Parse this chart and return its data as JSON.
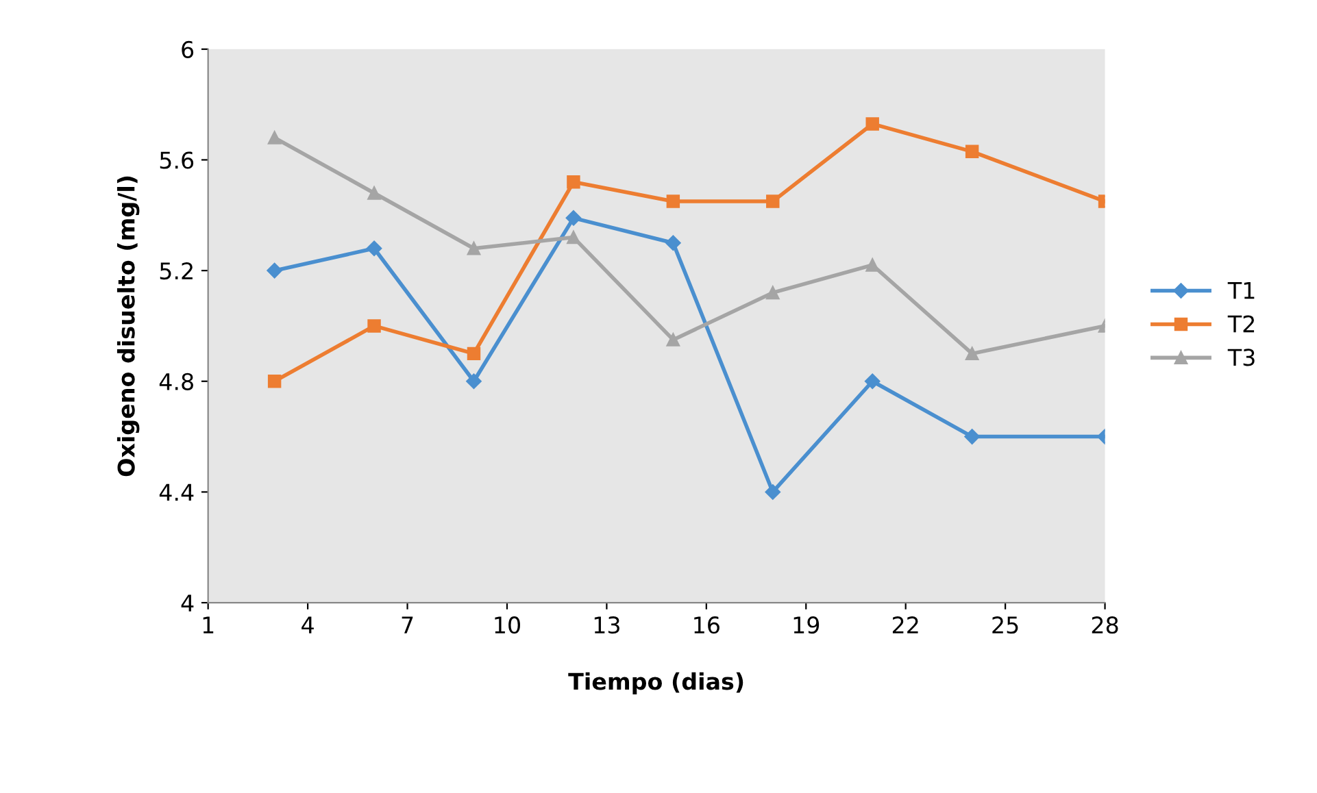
{
  "chart_data": {
    "type": "line",
    "xlabel": "Tiempo (dias)",
    "ylabel": "Oxigeno disuelto (mg/l)",
    "x": [
      3,
      6,
      9,
      12,
      15,
      18,
      21,
      24,
      28
    ],
    "series": [
      {
        "name": "T1",
        "color": "#4a8fcf",
        "marker": "diamond",
        "values": [
          5.2,
          5.28,
          4.8,
          5.39,
          5.3,
          4.4,
          4.8,
          4.6,
          4.6
        ]
      },
      {
        "name": "T2",
        "color": "#ed7d31",
        "marker": "square",
        "values": [
          4.8,
          5.0,
          4.9,
          5.52,
          5.45,
          5.45,
          5.73,
          5.63,
          5.45
        ]
      },
      {
        "name": "T3",
        "color": "#a5a5a5",
        "marker": "triangle",
        "values": [
          5.68,
          5.48,
          5.28,
          5.32,
          4.95,
          5.12,
          5.22,
          4.9,
          5.0
        ]
      }
    ],
    "xlim": [
      1,
      28
    ],
    "xticks": [
      1,
      4,
      7,
      10,
      13,
      16,
      19,
      22,
      25,
      28
    ],
    "ylim": [
      4,
      6
    ],
    "yticks": [
      4,
      4.4,
      4.8,
      5.2,
      5.6,
      6
    ],
    "grid": false,
    "legend": "right",
    "line_style": "solid"
  }
}
